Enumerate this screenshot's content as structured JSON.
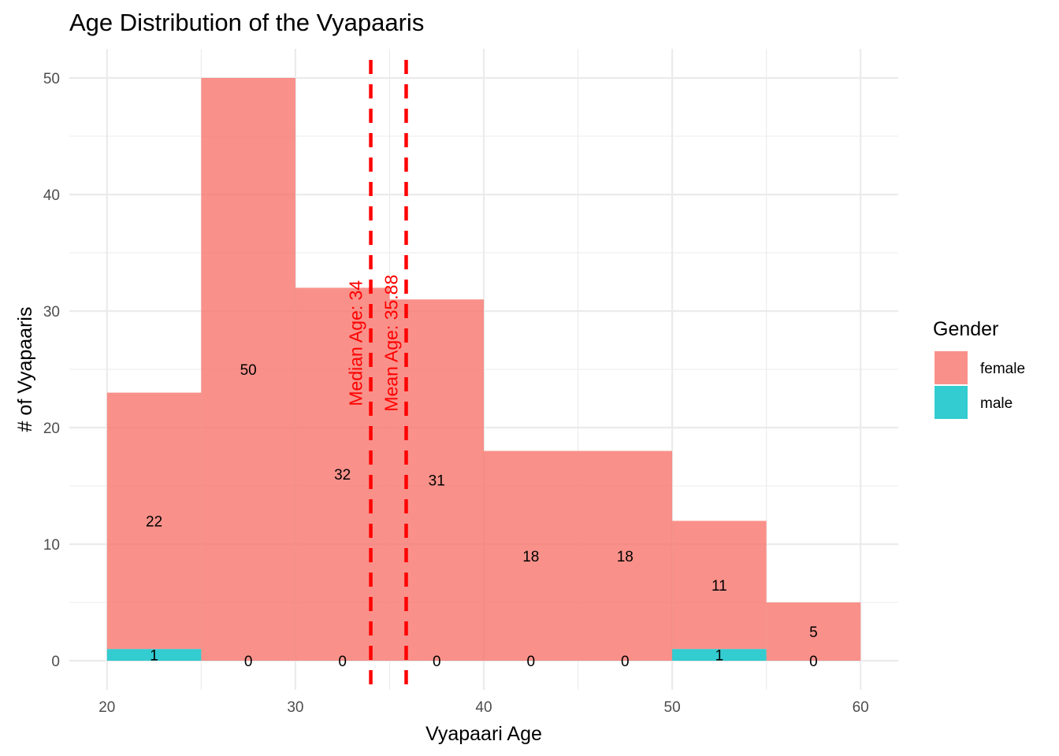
{
  "chart_data": {
    "type": "bar",
    "subtype": "stacked-histogram",
    "title": "Age Distribution of the Vyapaaris",
    "xlabel": "Vyapaari Age",
    "ylabel": "# of Vyapaaris",
    "xlim": [
      18,
      62
    ],
    "ylim": [
      -2.5,
      52.5
    ],
    "x_ticks": [
      20,
      30,
      40,
      50,
      60
    ],
    "y_ticks": [
      0,
      10,
      20,
      30,
      40,
      50
    ],
    "bins": [
      [
        20,
        25
      ],
      [
        25,
        30
      ],
      [
        30,
        35
      ],
      [
        35,
        40
      ],
      [
        40,
        45
      ],
      [
        45,
        50
      ],
      [
        50,
        55
      ],
      [
        55,
        60
      ]
    ],
    "series": [
      {
        "name": "female",
        "color": "#F8766D",
        "values": [
          22,
          50,
          32,
          31,
          18,
          18,
          11,
          5
        ]
      },
      {
        "name": "male",
        "color": "#00BFC4",
        "values": [
          1,
          0,
          0,
          0,
          0,
          0,
          1,
          0
        ]
      }
    ],
    "reference_lines": [
      {
        "value": 34,
        "label": "Median Age: 34",
        "color": "#FF0000",
        "style": "dashed"
      },
      {
        "value": 35.88,
        "label": "Mean Age: 35.88",
        "color": "#FF0000",
        "style": "dashed"
      }
    ],
    "legend": {
      "title": "Gender",
      "position": "right"
    },
    "grid": true
  }
}
